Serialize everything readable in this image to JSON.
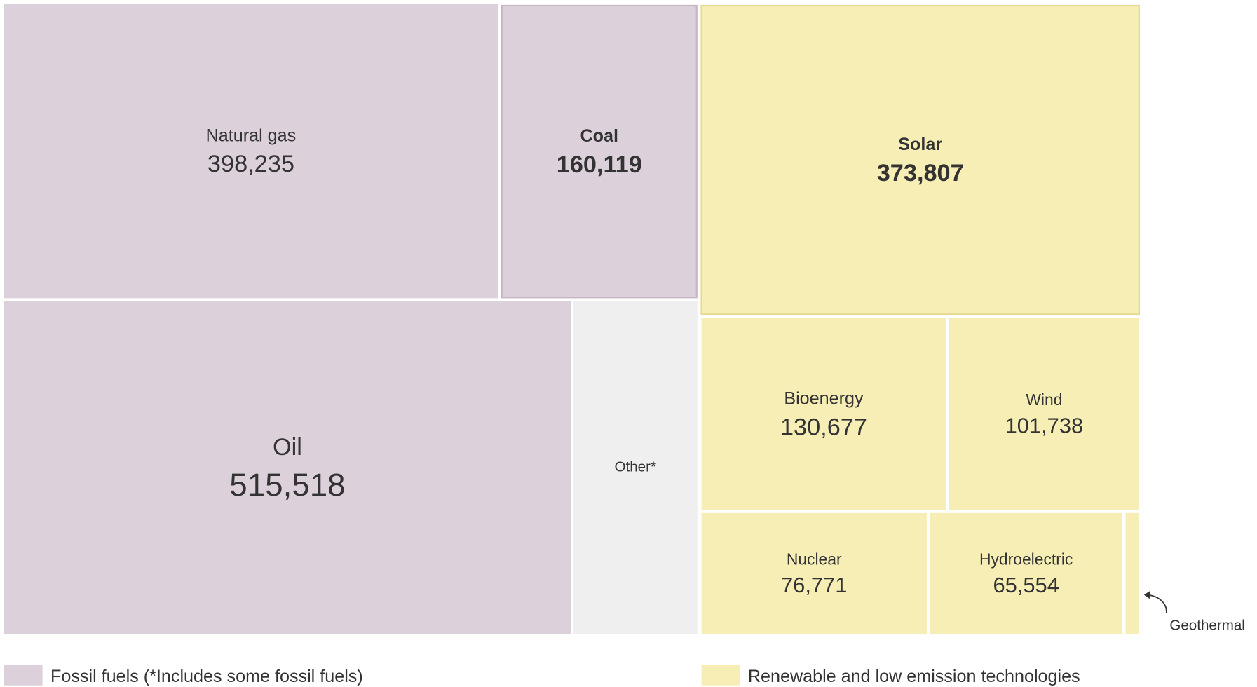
{
  "chart_data": {
    "type": "treemap",
    "items": [
      {
        "name": "Natural gas",
        "value": 398235,
        "value_label": "398,235",
        "color": "#dcd1da"
      },
      {
        "name": "Coal",
        "value": 160119,
        "value_label": "160,119",
        "color": "#dcd1da",
        "bold": true
      },
      {
        "name": "Solar",
        "value": 373807,
        "value_label": "373,807",
        "color": "#f6eeb5",
        "bold": true
      },
      {
        "name": "Oil",
        "value": 515518,
        "value_label": "515,518",
        "color": "#dcd1da"
      },
      {
        "name": "Other*",
        "value": 113000,
        "color": "#efefef"
      },
      {
        "name": "Bioenergy",
        "value": 130677,
        "value_label": "130,677",
        "color": "#f6eeb5"
      },
      {
        "name": "Wind",
        "value": 101738,
        "value_label": "101,738",
        "color": "#f6eeb5"
      },
      {
        "name": "Nuclear",
        "value": 76771,
        "value_label": "76,771",
        "color": "#f6eeb5"
      },
      {
        "name": "Hydroelectric",
        "value": 65554,
        "value_label": "65,554",
        "color": "#f6eeb5"
      },
      {
        "name": "Geothermal",
        "value": 4500,
        "color": "#f6eeb5"
      }
    ],
    "legend": [
      {
        "name": "Fossil fuels (*Includes some fossil fuels)",
        "color": "#dcd1da"
      },
      {
        "name": "Renewable and low emission technologies",
        "color": "#f6eeb5"
      }
    ]
  }
}
